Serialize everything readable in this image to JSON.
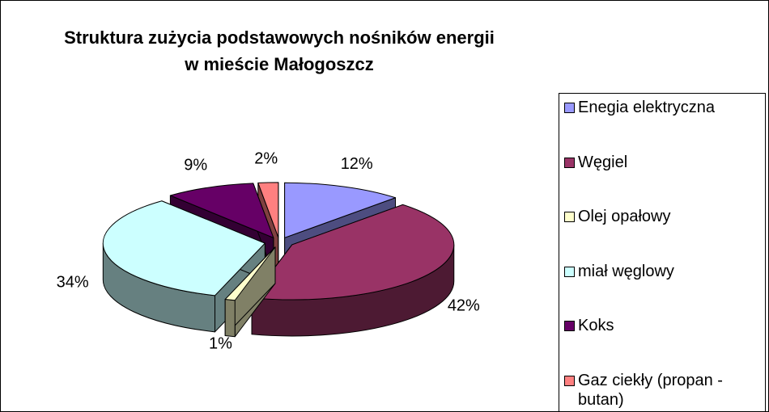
{
  "chart_data": {
    "type": "pie",
    "title": "Struktura zużycia podstawowych nośników energii\nw mieście Małogoszcz",
    "categories": [
      "Enegia elektryczna",
      "Węgiel",
      "Olej opałowy",
      "miał węglowy",
      "Koks",
      "Gaz ciekły (propan - butan)"
    ],
    "values": [
      12,
      42,
      1,
      34,
      9,
      2
    ],
    "value_labels": [
      "12%",
      "42%",
      "1%",
      "34%",
      "9%",
      "2%"
    ],
    "colors": [
      "#9999ff",
      "#993366",
      "#ffffcc",
      "#ccffff",
      "#660066",
      "#ff8080"
    ],
    "legend": "right"
  }
}
